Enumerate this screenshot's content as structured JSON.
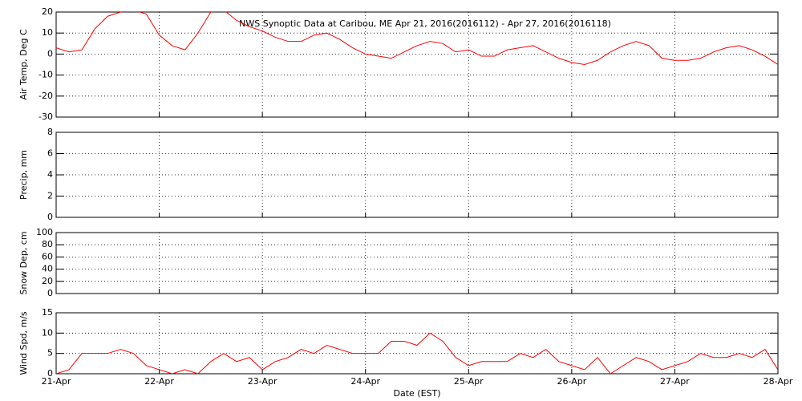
{
  "chart_data": [
    {
      "type": "line",
      "title": "NWS Synoptic Data at Caribou, ME   Apr 21, 2016(2016112) - Apr 27, 2016(2016118)",
      "ylabel": "Air Temp, Deg C",
      "grid": true,
      "xlim": [
        0,
        168
      ],
      "xticks": [
        0,
        24,
        48,
        72,
        96,
        120,
        144,
        168
      ],
      "ylim": [
        -30,
        20
      ],
      "yticks": [
        -30,
        -20,
        -10,
        0,
        10,
        20
      ],
      "x": [
        0,
        3,
        6,
        9,
        12,
        15,
        18,
        21,
        24,
        27,
        30,
        33,
        36,
        39,
        42,
        45,
        48,
        51,
        54,
        57,
        60,
        63,
        66,
        69,
        72,
        75,
        78,
        81,
        84,
        87,
        90,
        93,
        96,
        99,
        102,
        105,
        108,
        111,
        114,
        117,
        120,
        123,
        126,
        129,
        132,
        135,
        138,
        141,
        144,
        147,
        150,
        153,
        156,
        159,
        162,
        165,
        168
      ],
      "series": [
        {
          "color": "#ff0000",
          "values": [
            3,
            1,
            2,
            12,
            18,
            20,
            21,
            19,
            9,
            4,
            2,
            10,
            20,
            21,
            16,
            13,
            11,
            8,
            6,
            6,
            9,
            10,
            7,
            3,
            0,
            -1,
            -2,
            1,
            4,
            6,
            5,
            1,
            2,
            -1,
            -1,
            2,
            3,
            4,
            1,
            -2,
            -4,
            -5,
            -3,
            1,
            4,
            6,
            4,
            -2,
            -3,
            -3,
            -2,
            1,
            3,
            4,
            2,
            -1,
            -5
          ]
        }
      ]
    },
    {
      "type": "line",
      "ylabel": "Precip, mm",
      "grid": true,
      "xlim": [
        0,
        168
      ],
      "xticks": [
        0,
        24,
        48,
        72,
        96,
        120,
        144,
        168
      ],
      "ylim": [
        0,
        8
      ],
      "yticks": [
        0,
        2,
        4,
        6,
        8
      ]
    },
    {
      "type": "line",
      "ylabel": "Snow Dep, cm",
      "grid": true,
      "xlim": [
        0,
        168
      ],
      "xticks": [
        0,
        24,
        48,
        72,
        96,
        120,
        144,
        168
      ],
      "ylim": [
        0,
        100
      ],
      "yticks": [
        0,
        20,
        40,
        60,
        80,
        100
      ]
    },
    {
      "type": "line",
      "ylabel": "Wind Spd, m/s",
      "xlabel": "Date (EST)",
      "grid": true,
      "xlim": [
        0,
        168
      ],
      "xticks": [
        {
          "value": 0,
          "label": "21-Apr"
        },
        {
          "value": 24,
          "label": "22-Apr"
        },
        {
          "value": 48,
          "label": "23-Apr"
        },
        {
          "value": 72,
          "label": "24-Apr"
        },
        {
          "value": 96,
          "label": "25-Apr"
        },
        {
          "value": 120,
          "label": "26-Apr"
        },
        {
          "value": 144,
          "label": "27-Apr"
        },
        {
          "value": 168,
          "label": "28-Apr"
        }
      ],
      "ylim": [
        0,
        15
      ],
      "yticks": [
        0,
        5,
        10,
        15
      ],
      "x": [
        0,
        3,
        6,
        9,
        12,
        15,
        18,
        21,
        24,
        27,
        30,
        33,
        36,
        39,
        42,
        45,
        48,
        51,
        54,
        57,
        60,
        63,
        66,
        69,
        72,
        75,
        78,
        81,
        84,
        87,
        90,
        93,
        96,
        99,
        102,
        105,
        108,
        111,
        114,
        117,
        120,
        123,
        126,
        129,
        132,
        135,
        138,
        141,
        144,
        147,
        150,
        153,
        156,
        159,
        162,
        165,
        168
      ],
      "series": [
        {
          "color": "#ff0000",
          "values": [
            0,
            1,
            5,
            5,
            5,
            6,
            5,
            2,
            1,
            0,
            1,
            0,
            3,
            5,
            3,
            4,
            1,
            3,
            4,
            6,
            5,
            7,
            6,
            5,
            5,
            5,
            8,
            8,
            7,
            10,
            8,
            4,
            2,
            3,
            3,
            3,
            5,
            4,
            6,
            3,
            2,
            1,
            4,
            0,
            2,
            4,
            3,
            1,
            2,
            3,
            5,
            4,
            4,
            5,
            4,
            6,
            1
          ]
        }
      ]
    }
  ]
}
